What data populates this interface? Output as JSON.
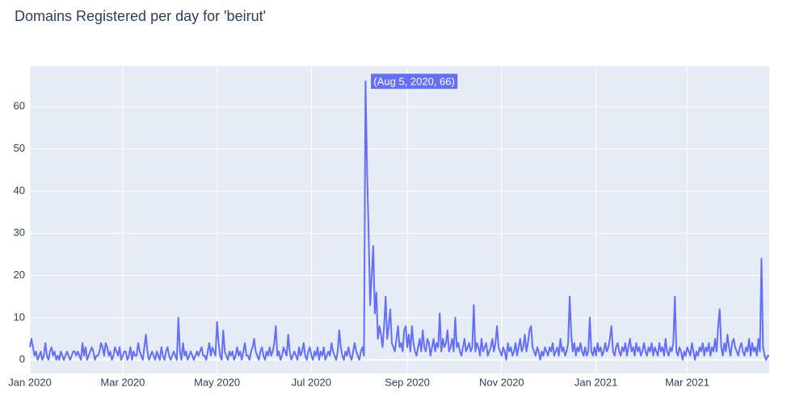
{
  "chart_data": {
    "type": "line",
    "title": "Domains Registered per day for 'beirut'",
    "annotation": "(Aug 5, 2020, 66)",
    "grid": true,
    "ylim": [
      -3.2,
      69.6
    ],
    "yticks": [
      0,
      10,
      20,
      30,
      40,
      50,
      60
    ],
    "xlim": [
      "2020-01-01",
      "2021-04-23"
    ],
    "xticks": [
      {
        "value": "2020-01-01",
        "label": "Jan 2020"
      },
      {
        "value": "2020-03-01",
        "label": "Mar 2020"
      },
      {
        "value": "2020-05-01",
        "label": "May 2020"
      },
      {
        "value": "2020-07-01",
        "label": "Jul 2020"
      },
      {
        "value": "2020-09-01",
        "label": "Sep 2020"
      },
      {
        "value": "2020-11-01",
        "label": "Nov 2020"
      },
      {
        "value": "2021-01-01",
        "label": "Jan 2021"
      },
      {
        "value": "2021-03-01",
        "label": "Mar 2021"
      }
    ],
    "x": [
      "2020-01-01",
      "2020-01-02",
      "2020-01-03",
      "2020-01-04",
      "2020-01-05",
      "2020-01-06",
      "2020-01-07",
      "2020-01-08",
      "2020-01-09",
      "2020-01-10",
      "2020-01-11",
      "2020-01-12",
      "2020-01-13",
      "2020-01-14",
      "2020-01-15",
      "2020-01-16",
      "2020-01-17",
      "2020-01-18",
      "2020-01-19",
      "2020-01-20",
      "2020-01-21",
      "2020-01-22",
      "2020-01-23",
      "2020-01-24",
      "2020-01-25",
      "2020-01-26",
      "2020-01-27",
      "2020-01-28",
      "2020-01-29",
      "2020-01-30",
      "2020-01-31",
      "2020-02-01",
      "2020-02-02",
      "2020-02-03",
      "2020-02-04",
      "2020-02-05",
      "2020-02-06",
      "2020-02-07",
      "2020-02-08",
      "2020-02-09",
      "2020-02-10",
      "2020-02-11",
      "2020-02-12",
      "2020-02-13",
      "2020-02-14",
      "2020-02-15",
      "2020-02-16",
      "2020-02-17",
      "2020-02-18",
      "2020-02-19",
      "2020-02-20",
      "2020-02-21",
      "2020-02-22",
      "2020-02-23",
      "2020-02-24",
      "2020-02-25",
      "2020-02-26",
      "2020-02-27",
      "2020-02-28",
      "2020-02-29",
      "2020-03-01",
      "2020-03-02",
      "2020-03-03",
      "2020-03-04",
      "2020-03-05",
      "2020-03-06",
      "2020-03-07",
      "2020-03-08",
      "2020-03-09",
      "2020-03-10",
      "2020-03-11",
      "2020-03-12",
      "2020-03-13",
      "2020-03-14",
      "2020-03-15",
      "2020-03-16",
      "2020-03-17",
      "2020-03-18",
      "2020-03-19",
      "2020-03-20",
      "2020-03-21",
      "2020-03-22",
      "2020-03-23",
      "2020-03-24",
      "2020-03-25",
      "2020-03-26",
      "2020-03-27",
      "2020-03-28",
      "2020-03-29",
      "2020-03-30",
      "2020-03-31",
      "2020-04-01",
      "2020-04-02",
      "2020-04-03",
      "2020-04-04",
      "2020-04-05",
      "2020-04-06",
      "2020-04-07",
      "2020-04-08",
      "2020-04-09",
      "2020-04-10",
      "2020-04-11",
      "2020-04-12",
      "2020-04-13",
      "2020-04-14",
      "2020-04-15",
      "2020-04-16",
      "2020-04-17",
      "2020-04-18",
      "2020-04-19",
      "2020-04-20",
      "2020-04-21",
      "2020-04-22",
      "2020-04-23",
      "2020-04-24",
      "2020-04-25",
      "2020-04-26",
      "2020-04-27",
      "2020-04-28",
      "2020-04-29",
      "2020-04-30",
      "2020-05-01",
      "2020-05-02",
      "2020-05-03",
      "2020-05-04",
      "2020-05-05",
      "2020-05-06",
      "2020-05-07",
      "2020-05-08",
      "2020-05-09",
      "2020-05-10",
      "2020-05-11",
      "2020-05-12",
      "2020-05-13",
      "2020-05-14",
      "2020-05-15",
      "2020-05-16",
      "2020-05-17",
      "2020-05-18",
      "2020-05-19",
      "2020-05-20",
      "2020-05-21",
      "2020-05-22",
      "2020-05-23",
      "2020-05-24",
      "2020-05-25",
      "2020-05-26",
      "2020-05-27",
      "2020-05-28",
      "2020-05-29",
      "2020-05-30",
      "2020-05-31",
      "2020-06-01",
      "2020-06-02",
      "2020-06-03",
      "2020-06-04",
      "2020-06-05",
      "2020-06-06",
      "2020-06-07",
      "2020-06-08",
      "2020-06-09",
      "2020-06-10",
      "2020-06-11",
      "2020-06-12",
      "2020-06-13",
      "2020-06-14",
      "2020-06-15",
      "2020-06-16",
      "2020-06-17",
      "2020-06-18",
      "2020-06-19",
      "2020-06-20",
      "2020-06-21",
      "2020-06-22",
      "2020-06-23",
      "2020-06-24",
      "2020-06-25",
      "2020-06-26",
      "2020-06-27",
      "2020-06-28",
      "2020-06-29",
      "2020-06-30",
      "2020-07-01",
      "2020-07-02",
      "2020-07-03",
      "2020-07-04",
      "2020-07-05",
      "2020-07-06",
      "2020-07-07",
      "2020-07-08",
      "2020-07-09",
      "2020-07-10",
      "2020-07-11",
      "2020-07-12",
      "2020-07-13",
      "2020-07-14",
      "2020-07-15",
      "2020-07-16",
      "2020-07-17",
      "2020-07-18",
      "2020-07-19",
      "2020-07-20",
      "2020-07-21",
      "2020-07-22",
      "2020-07-23",
      "2020-07-24",
      "2020-07-25",
      "2020-07-26",
      "2020-07-27",
      "2020-07-28",
      "2020-07-29",
      "2020-07-30",
      "2020-07-31",
      "2020-08-01",
      "2020-08-02",
      "2020-08-03",
      "2020-08-04",
      "2020-08-05",
      "2020-08-06",
      "2020-08-07",
      "2020-08-08",
      "2020-08-09",
      "2020-08-10",
      "2020-08-11",
      "2020-08-12",
      "2020-08-13",
      "2020-08-14",
      "2020-08-15",
      "2020-08-16",
      "2020-08-17",
      "2020-08-18",
      "2020-08-19",
      "2020-08-20",
      "2020-08-21",
      "2020-08-22",
      "2020-08-23",
      "2020-08-24",
      "2020-08-25",
      "2020-08-26",
      "2020-08-27",
      "2020-08-28",
      "2020-08-29",
      "2020-08-30",
      "2020-08-31",
      "2020-09-01",
      "2020-09-02",
      "2020-09-03",
      "2020-09-04",
      "2020-09-05",
      "2020-09-06",
      "2020-09-07",
      "2020-09-08",
      "2020-09-09",
      "2020-09-10",
      "2020-09-11",
      "2020-09-12",
      "2020-09-13",
      "2020-09-14",
      "2020-09-15",
      "2020-09-16",
      "2020-09-17",
      "2020-09-18",
      "2020-09-19",
      "2020-09-20",
      "2020-09-21",
      "2020-09-22",
      "2020-09-23",
      "2020-09-24",
      "2020-09-25",
      "2020-09-26",
      "2020-09-27",
      "2020-09-28",
      "2020-09-29",
      "2020-09-30",
      "2020-10-01",
      "2020-10-02",
      "2020-10-03",
      "2020-10-04",
      "2020-10-05",
      "2020-10-06",
      "2020-10-07",
      "2020-10-08",
      "2020-10-09",
      "2020-10-10",
      "2020-10-11",
      "2020-10-12",
      "2020-10-13",
      "2020-10-14",
      "2020-10-15",
      "2020-10-16",
      "2020-10-17",
      "2020-10-18",
      "2020-10-19",
      "2020-10-20",
      "2020-10-21",
      "2020-10-22",
      "2020-10-23",
      "2020-10-24",
      "2020-10-25",
      "2020-10-26",
      "2020-10-27",
      "2020-10-28",
      "2020-10-29",
      "2020-10-30",
      "2020-10-31",
      "2020-11-01",
      "2020-11-02",
      "2020-11-03",
      "2020-11-04",
      "2020-11-05",
      "2020-11-06",
      "2020-11-07",
      "2020-11-08",
      "2020-11-09",
      "2020-11-10",
      "2020-11-11",
      "2020-11-12",
      "2020-11-13",
      "2020-11-14",
      "2020-11-15",
      "2020-11-16",
      "2020-11-17",
      "2020-11-18",
      "2020-11-19",
      "2020-11-20",
      "2020-11-21",
      "2020-11-22",
      "2020-11-23",
      "2020-11-24",
      "2020-11-25",
      "2020-11-26",
      "2020-11-27",
      "2020-11-28",
      "2020-11-29",
      "2020-11-30",
      "2020-12-01",
      "2020-12-02",
      "2020-12-03",
      "2020-12-04",
      "2020-12-05",
      "2020-12-06",
      "2020-12-07",
      "2020-12-08",
      "2020-12-09",
      "2020-12-10",
      "2020-12-11",
      "2020-12-12",
      "2020-12-13",
      "2020-12-14",
      "2020-12-15",
      "2020-12-16",
      "2020-12-17",
      "2020-12-18",
      "2020-12-19",
      "2020-12-20",
      "2020-12-21",
      "2020-12-22",
      "2020-12-23",
      "2020-12-24",
      "2020-12-25",
      "2020-12-26",
      "2020-12-27",
      "2020-12-28",
      "2020-12-29",
      "2020-12-30",
      "2020-12-31",
      "2021-01-01",
      "2021-01-02",
      "2021-01-03",
      "2021-01-04",
      "2021-01-05",
      "2021-01-06",
      "2021-01-07",
      "2021-01-08",
      "2021-01-09",
      "2021-01-10",
      "2021-01-11",
      "2021-01-12",
      "2021-01-13",
      "2021-01-14",
      "2021-01-15",
      "2021-01-16",
      "2021-01-17",
      "2021-01-18",
      "2021-01-19",
      "2021-01-20",
      "2021-01-21",
      "2021-01-22",
      "2021-01-23",
      "2021-01-24",
      "2021-01-25",
      "2021-01-26",
      "2021-01-27",
      "2021-01-28",
      "2021-01-29",
      "2021-01-30",
      "2021-01-31",
      "2021-02-01",
      "2021-02-02",
      "2021-02-03",
      "2021-02-04",
      "2021-02-05",
      "2021-02-06",
      "2021-02-07",
      "2021-02-08",
      "2021-02-09",
      "2021-02-10",
      "2021-02-11",
      "2021-02-12",
      "2021-02-13",
      "2021-02-14",
      "2021-02-15",
      "2021-02-16",
      "2021-02-17",
      "2021-02-18",
      "2021-02-19",
      "2021-02-20",
      "2021-02-21",
      "2021-02-22",
      "2021-02-23",
      "2021-02-24",
      "2021-02-25",
      "2021-02-26",
      "2021-02-27",
      "2021-02-28",
      "2021-03-01",
      "2021-03-02",
      "2021-03-03",
      "2021-03-04",
      "2021-03-05",
      "2021-03-06",
      "2021-03-07",
      "2021-03-08",
      "2021-03-09",
      "2021-03-10",
      "2021-03-11",
      "2021-03-12",
      "2021-03-13",
      "2021-03-14",
      "2021-03-15",
      "2021-03-16",
      "2021-03-17",
      "2021-03-18",
      "2021-03-19",
      "2021-03-20",
      "2021-03-21",
      "2021-03-22",
      "2021-03-23",
      "2021-03-24",
      "2021-03-25",
      "2021-03-26",
      "2021-03-27",
      "2021-03-28",
      "2021-03-29",
      "2021-03-30",
      "2021-03-31",
      "2021-04-01",
      "2021-04-02",
      "2021-04-03",
      "2021-04-04",
      "2021-04-05",
      "2021-04-06",
      "2021-04-07",
      "2021-04-08",
      "2021-04-09",
      "2021-04-10",
      "2021-04-11",
      "2021-04-12",
      "2021-04-13",
      "2021-04-14",
      "2021-04-15",
      "2021-04-16",
      "2021-04-17",
      "2021-04-18",
      "2021-04-19",
      "2021-04-20",
      "2021-04-21",
      "2021-04-22",
      "2021-04-23"
    ],
    "series": [
      {
        "color": "#636efa",
        "values": [
          3,
          5,
          3,
          1,
          2,
          0,
          1,
          2,
          0,
          1,
          4,
          1,
          0,
          2,
          3,
          1,
          2,
          0,
          1,
          0,
          2,
          1,
          0,
          1,
          2,
          1,
          0,
          1,
          2,
          2,
          1,
          2,
          1,
          0,
          4,
          1,
          3,
          0,
          1,
          2,
          3,
          2,
          0,
          1,
          1,
          2,
          4,
          3,
          1,
          4,
          3,
          1,
          2,
          0,
          1,
          3,
          2,
          1,
          3,
          0,
          1,
          2,
          2,
          0,
          1,
          3,
          0,
          2,
          1,
          1,
          4,
          2,
          1,
          0,
          3,
          6,
          2,
          0,
          1,
          2,
          1,
          0,
          2,
          1,
          0,
          3,
          1,
          0,
          2,
          3,
          1,
          0,
          1,
          2,
          1,
          0,
          10,
          2,
          0,
          4,
          1,
          2,
          0,
          1,
          2,
          1,
          0,
          1,
          2,
          1,
          2,
          3,
          1,
          1,
          0,
          2,
          4,
          1,
          3,
          2,
          1,
          9,
          4,
          1,
          0,
          7,
          2,
          1,
          0,
          2,
          1,
          2,
          0,
          1,
          3,
          1,
          2,
          0,
          2,
          4,
          1,
          1,
          0,
          2,
          3,
          5,
          2,
          1,
          0,
          2,
          3,
          1,
          0,
          2,
          1,
          3,
          1,
          2,
          4,
          8,
          1,
          2,
          0,
          1,
          3,
          2,
          1,
          6,
          2,
          0,
          1,
          2,
          1,
          0,
          3,
          1,
          2,
          4,
          1,
          0,
          2,
          3,
          1,
          0,
          2,
          1,
          3,
          0,
          2,
          1,
          3,
          0,
          1,
          2,
          1,
          4,
          2,
          1,
          0,
          2,
          7,
          3,
          1,
          0,
          2,
          1,
          3,
          1,
          0,
          2,
          4,
          2,
          1,
          0,
          2,
          3,
          1,
          66,
          45,
          30,
          13,
          20,
          27,
          11,
          16,
          5,
          8,
          6,
          3,
          8,
          15,
          5,
          8,
          12,
          4,
          3,
          2,
          5,
          8,
          3,
          4,
          2,
          7,
          8,
          3,
          6,
          2,
          8,
          4,
          2,
          1,
          3,
          5,
          2,
          7,
          3,
          2,
          5,
          4,
          1,
          3,
          5,
          2,
          4,
          3,
          11,
          2,
          5,
          3,
          4,
          7,
          2,
          3,
          5,
          2,
          10,
          3,
          4,
          2,
          1,
          3,
          5,
          2,
          3,
          4,
          2,
          3,
          13,
          2,
          4,
          3,
          1,
          5,
          2,
          3,
          4,
          1,
          2,
          3,
          5,
          2,
          4,
          8,
          3,
          2,
          1,
          3,
          2,
          0,
          4,
          2,
          3,
          1,
          2,
          4,
          1,
          3,
          5,
          2,
          3,
          6,
          2,
          4,
          7,
          8,
          3,
          2,
          1,
          3,
          2,
          0,
          2,
          1,
          3,
          2,
          1,
          3,
          2,
          4,
          1,
          2,
          3,
          1,
          5,
          2,
          3,
          1,
          2,
          4,
          15,
          6,
          2,
          4,
          1,
          3,
          2,
          4,
          2,
          1,
          3,
          1,
          2,
          10,
          2,
          1,
          3,
          1,
          4,
          2,
          3,
          1,
          2,
          4,
          2,
          3,
          5,
          8,
          2,
          1,
          3,
          4,
          2,
          1,
          3,
          2,
          4,
          1,
          3,
          5,
          2,
          3,
          1,
          4,
          2,
          3,
          1,
          2,
          4,
          2,
          1,
          3,
          2,
          4,
          1,
          3,
          2,
          1,
          4,
          2,
          3,
          1,
          5,
          2,
          1,
          3,
          2,
          4,
          15,
          2,
          1,
          3,
          2,
          0,
          2,
          1,
          3,
          2,
          1,
          4,
          2,
          0,
          2,
          1,
          3,
          2,
          4,
          1,
          3,
          2,
          4,
          1,
          3,
          2,
          5,
          2,
          8,
          12,
          3,
          1,
          4,
          2,
          6,
          3,
          1,
          4,
          5,
          3,
          2,
          1,
          3,
          4,
          2,
          1,
          3,
          2,
          5,
          1,
          4,
          2,
          3,
          1,
          5,
          2,
          24,
          3,
          1,
          0,
          1,
          1
        ]
      }
    ]
  }
}
